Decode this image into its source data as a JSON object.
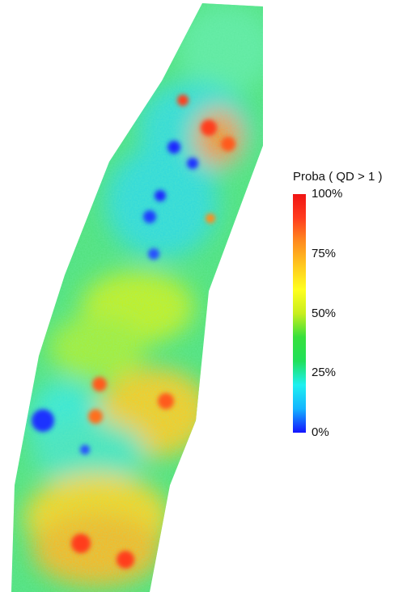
{
  "legend": {
    "title": "Proba ( QD > 1 )",
    "ticks": [
      {
        "label": "100%",
        "value": 1.0
      },
      {
        "label": "75%",
        "value": 0.75
      },
      {
        "label": "50%",
        "value": 0.5
      },
      {
        "label": "25%",
        "value": 0.25
      },
      {
        "label": "0%",
        "value": 0.0
      }
    ],
    "colorscale": [
      "#1414ff",
      "#14b4ff",
      "#1ef0f0",
      "#20e05a",
      "#37e03c",
      "#c8ee1e",
      "#ffff1e",
      "#ffc81e",
      "#ff8c1e",
      "#ff3c1e",
      "#f01414"
    ]
  },
  "map": {
    "background_level": 0.45,
    "hotspots": [
      {
        "value": 0.05
      },
      {
        "value": 0.05
      },
      {
        "value": 0.05
      },
      {
        "value": 0.1
      },
      {
        "value": 0.95
      },
      {
        "value": 0.95
      },
      {
        "value": 0.9
      },
      {
        "value": 0.9
      },
      {
        "value": 0.05
      },
      {
        "value": 0.95
      },
      {
        "value": 0.92
      },
      {
        "value": 0.1
      },
      {
        "value": 0.95
      },
      {
        "value": 0.08
      },
      {
        "value": 0.95
      },
      {
        "value": 0.85
      }
    ]
  }
}
